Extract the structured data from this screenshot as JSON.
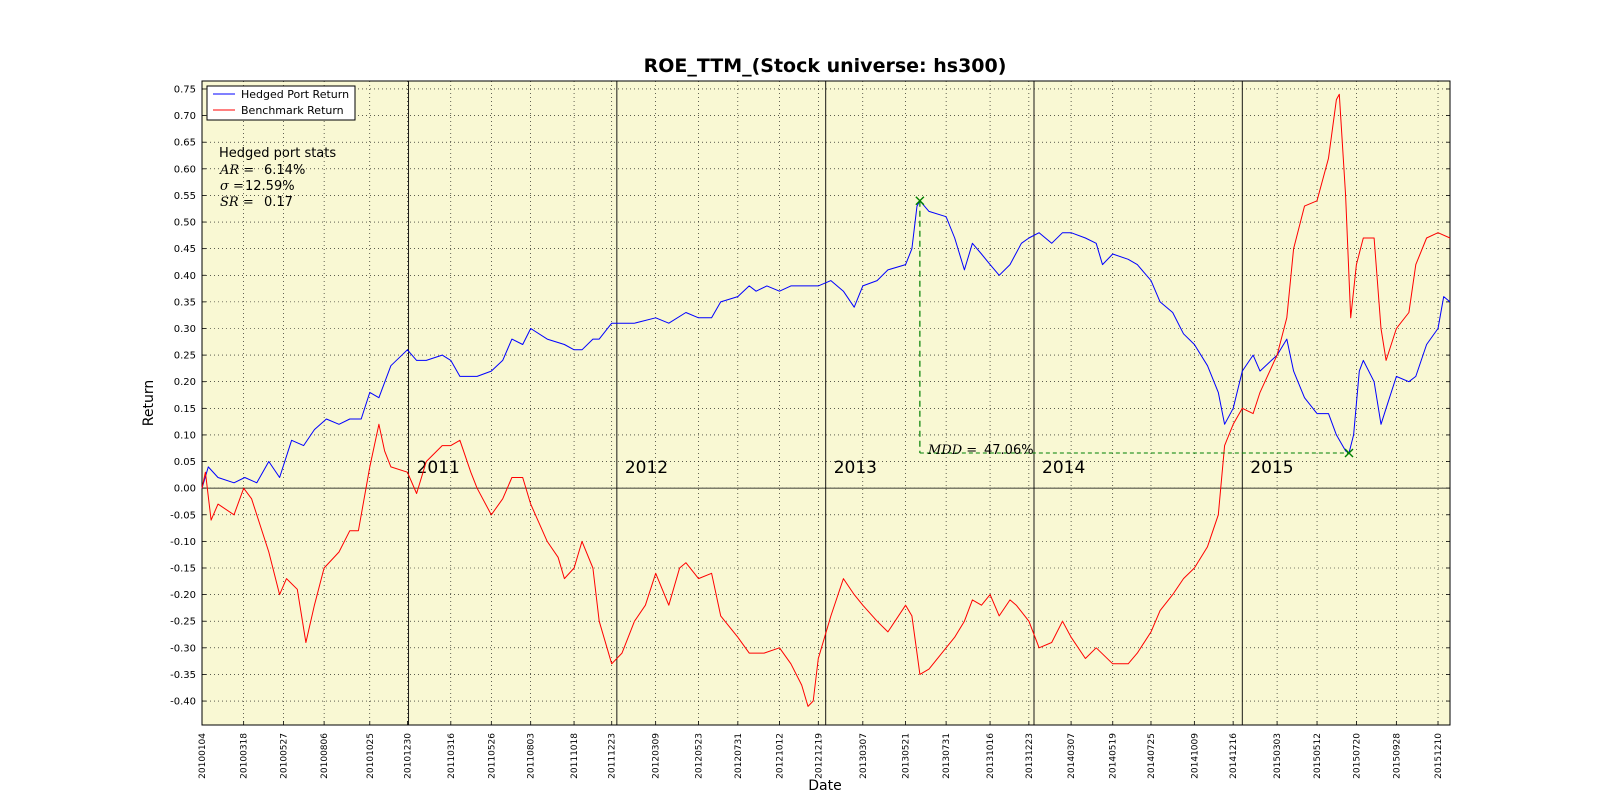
{
  "chart_data": {
    "type": "line",
    "title": "ROE_TTM_(Stock universe: hs300)",
    "xlabel": "Date",
    "ylabel": "Return",
    "ylim": [
      -0.445,
      0.765
    ],
    "yticks": [
      "0.75",
      "0.70",
      "0.65",
      "0.60",
      "0.55",
      "0.50",
      "0.45",
      "0.40",
      "0.35",
      "0.30",
      "0.25",
      "0.20",
      "0.15",
      "0.10",
      "0.05",
      "0.00",
      "-0.05",
      "-0.10",
      "-0.15",
      "-0.20",
      "-0.25",
      "-0.30",
      "-0.35",
      "-0.40"
    ],
    "x_tick_labels": [
      "20100104",
      "20100318",
      "20100527",
      "20100806",
      "20101025",
      "20101230",
      "20110316",
      "20110526",
      "20110803",
      "20111018",
      "20111223",
      "20120309",
      "20120523",
      "20120731",
      "20121012",
      "20121219",
      "20130307",
      "20130521",
      "20130731",
      "20131016",
      "20131223",
      "20140307",
      "20140519",
      "20140725",
      "20141009",
      "20141216",
      "20150303",
      "20150512",
      "20150720",
      "20150928",
      "20151210"
    ],
    "x_range": [
      "20100104",
      "20151231"
    ],
    "grid": true,
    "legend_position": "top-left",
    "year_labels": [
      "2011",
      "2012",
      "2013",
      "2014",
      "2015"
    ],
    "stats": {
      "heading": "Hedged port stats",
      "ar_label": "AR = ",
      "ar_value": "6.14%",
      "sigma_label": "σ = ",
      "sigma_value": "12.59%",
      "sr_label": "SR = ",
      "sr_value": "0.17"
    },
    "mdd": {
      "label": "MDD = ",
      "value": "47.06%",
      "peak": {
        "date": "20130615",
        "y": 0.54
      },
      "trough": {
        "date": "20150707",
        "y": 0.066
      }
    },
    "series": [
      {
        "name": "Hedged Port Return",
        "color": "#0000ff",
        "points": [
          [
            "20100104",
            0.0
          ],
          [
            "20100115",
            0.04
          ],
          [
            "20100201",
            0.02
          ],
          [
            "20100301",
            0.01
          ],
          [
            "20100320",
            0.02
          ],
          [
            "20100410",
            0.01
          ],
          [
            "20100501",
            0.05
          ],
          [
            "20100520",
            0.02
          ],
          [
            "20100610",
            0.09
          ],
          [
            "20100701",
            0.08
          ],
          [
            "20100720",
            0.11
          ],
          [
            "20100810",
            0.13
          ],
          [
            "20100901",
            0.12
          ],
          [
            "20100920",
            0.13
          ],
          [
            "20101010",
            0.13
          ],
          [
            "20101025",
            0.18
          ],
          [
            "20101110",
            0.17
          ],
          [
            "20101201",
            0.23
          ],
          [
            "20101230",
            0.26
          ],
          [
            "20110115",
            0.24
          ],
          [
            "20110201",
            0.24
          ],
          [
            "20110301",
            0.25
          ],
          [
            "20110316",
            0.24
          ],
          [
            "20110401",
            0.21
          ],
          [
            "20110501",
            0.21
          ],
          [
            "20110526",
            0.22
          ],
          [
            "20110615",
            0.24
          ],
          [
            "20110701",
            0.28
          ],
          [
            "20110720",
            0.27
          ],
          [
            "20110803",
            0.3
          ],
          [
            "20110901",
            0.28
          ],
          [
            "20111001",
            0.27
          ],
          [
            "20111018",
            0.26
          ],
          [
            "20111101",
            0.26
          ],
          [
            "20111120",
            0.28
          ],
          [
            "20111201",
            0.28
          ],
          [
            "20111223",
            0.31
          ],
          [
            "20120115",
            0.31
          ],
          [
            "20120201",
            0.31
          ],
          [
            "20120309",
            0.32
          ],
          [
            "20120401",
            0.31
          ],
          [
            "20120501",
            0.33
          ],
          [
            "20120523",
            0.32
          ],
          [
            "20120615",
            0.32
          ],
          [
            "20120701",
            0.35
          ],
          [
            "20120731",
            0.36
          ],
          [
            "20120820",
            0.38
          ],
          [
            "20120901",
            0.37
          ],
          [
            "20120920",
            0.38
          ],
          [
            "20121012",
            0.37
          ],
          [
            "20121101",
            0.38
          ],
          [
            "20121120",
            0.38
          ],
          [
            "20121219",
            0.38
          ],
          [
            "20130110",
            0.39
          ],
          [
            "20130201",
            0.37
          ],
          [
            "20130220",
            0.34
          ],
          [
            "20130307",
            0.38
          ],
          [
            "20130401",
            0.39
          ],
          [
            "20130420",
            0.41
          ],
          [
            "20130521",
            0.42
          ],
          [
            "20130601",
            0.45
          ],
          [
            "20130610",
            0.53
          ],
          [
            "20130615",
            0.54
          ],
          [
            "20130701",
            0.52
          ],
          [
            "20130731",
            0.51
          ],
          [
            "20130815",
            0.47
          ],
          [
            "20130901",
            0.41
          ],
          [
            "20130915",
            0.46
          ],
          [
            "20131001",
            0.44
          ],
          [
            "20131016",
            0.42
          ],
          [
            "20131101",
            0.4
          ],
          [
            "20131120",
            0.42
          ],
          [
            "20131210",
            0.46
          ],
          [
            "20131223",
            0.47
          ],
          [
            "20140110",
            0.48
          ],
          [
            "20140201",
            0.46
          ],
          [
            "20140220",
            0.48
          ],
          [
            "20140307",
            0.48
          ],
          [
            "20140401",
            0.47
          ],
          [
            "20140420",
            0.46
          ],
          [
            "20140501",
            0.42
          ],
          [
            "20140519",
            0.44
          ],
          [
            "20140615",
            0.43
          ],
          [
            "20140701",
            0.42
          ],
          [
            "20140725",
            0.39
          ],
          [
            "20140810",
            0.35
          ],
          [
            "20140901",
            0.33
          ],
          [
            "20140920",
            0.29
          ],
          [
            "20141009",
            0.27
          ],
          [
            "20141101",
            0.23
          ],
          [
            "20141120",
            0.18
          ],
          [
            "20141201",
            0.12
          ],
          [
            "20141216",
            0.15
          ],
          [
            "20150101",
            0.22
          ],
          [
            "20150120",
            0.25
          ],
          [
            "20150201",
            0.22
          ],
          [
            "20150303",
            0.25
          ],
          [
            "20150320",
            0.28
          ],
          [
            "20150401",
            0.22
          ],
          [
            "20150420",
            0.17
          ],
          [
            "20150512",
            0.14
          ],
          [
            "20150601",
            0.14
          ],
          [
            "20150615",
            0.1
          ],
          [
            "20150701",
            0.07
          ],
          [
            "20150707",
            0.066
          ],
          [
            "20150715",
            0.1
          ],
          [
            "20150725",
            0.22
          ],
          [
            "20150801",
            0.24
          ],
          [
            "20150820",
            0.2
          ],
          [
            "20150901",
            0.12
          ],
          [
            "20150910",
            0.15
          ],
          [
            "20150928",
            0.21
          ],
          [
            "20151020",
            0.2
          ],
          [
            "20151101",
            0.21
          ],
          [
            "20151120",
            0.27
          ],
          [
            "20151210",
            0.3
          ],
          [
            "20151220",
            0.36
          ],
          [
            "20151231",
            0.35
          ]
        ]
      },
      {
        "name": "Benchmark Return",
        "color": "#ff0000",
        "points": [
          [
            "20100104",
            0.0
          ],
          [
            "20100110",
            0.03
          ],
          [
            "20100120",
            -0.06
          ],
          [
            "20100201",
            -0.03
          ],
          [
            "20100301",
            -0.05
          ],
          [
            "20100318",
            0.0
          ],
          [
            "20100401",
            -0.02
          ],
          [
            "20100501",
            -0.12
          ],
          [
            "20100520",
            -0.2
          ],
          [
            "20100601",
            -0.17
          ],
          [
            "20100620",
            -0.19
          ],
          [
            "20100705",
            -0.29
          ],
          [
            "20100720",
            -0.22
          ],
          [
            "20100806",
            -0.15
          ],
          [
            "20100901",
            -0.12
          ],
          [
            "20100920",
            -0.08
          ],
          [
            "20101005",
            -0.08
          ],
          [
            "20101025",
            0.04
          ],
          [
            "20101110",
            0.12
          ],
          [
            "20101120",
            0.07
          ],
          [
            "20101201",
            0.04
          ],
          [
            "20101230",
            0.03
          ],
          [
            "20110115",
            -0.01
          ],
          [
            "20110201",
            0.05
          ],
          [
            "20110301",
            0.08
          ],
          [
            "20110316",
            0.08
          ],
          [
            "20110401",
            0.09
          ],
          [
            "20110420",
            0.03
          ],
          [
            "20110501",
            0.0
          ],
          [
            "20110526",
            -0.05
          ],
          [
            "20110615",
            -0.02
          ],
          [
            "20110701",
            0.02
          ],
          [
            "20110720",
            0.02
          ],
          [
            "20110803",
            -0.03
          ],
          [
            "20110901",
            -0.1
          ],
          [
            "20110920",
            -0.13
          ],
          [
            "20111001",
            -0.17
          ],
          [
            "20111018",
            -0.15
          ],
          [
            "20111101",
            -0.1
          ],
          [
            "20111120",
            -0.15
          ],
          [
            "20111201",
            -0.25
          ],
          [
            "20111223",
            -0.33
          ],
          [
            "20120110",
            -0.31
          ],
          [
            "20120201",
            -0.25
          ],
          [
            "20120220",
            -0.22
          ],
          [
            "20120309",
            -0.16
          ],
          [
            "20120401",
            -0.22
          ],
          [
            "20120420",
            -0.15
          ],
          [
            "20120501",
            -0.14
          ],
          [
            "20120523",
            -0.17
          ],
          [
            "20120615",
            -0.16
          ],
          [
            "20120701",
            -0.24
          ],
          [
            "20120731",
            -0.28
          ],
          [
            "20120820",
            -0.31
          ],
          [
            "20120915",
            -0.31
          ],
          [
            "20121012",
            -0.3
          ],
          [
            "20121101",
            -0.33
          ],
          [
            "20121120",
            -0.37
          ],
          [
            "20121201",
            -0.41
          ],
          [
            "20121210",
            -0.4
          ],
          [
            "20121219",
            -0.32
          ],
          [
            "20130110",
            -0.24
          ],
          [
            "20130201",
            -0.17
          ],
          [
            "20130220",
            -0.2
          ],
          [
            "20130307",
            -0.22
          ],
          [
            "20130401",
            -0.25
          ],
          [
            "20130420",
            -0.27
          ],
          [
            "20130521",
            -0.22
          ],
          [
            "20130601",
            -0.24
          ],
          [
            "20130615",
            -0.35
          ],
          [
            "20130701",
            -0.34
          ],
          [
            "20130731",
            -0.3
          ],
          [
            "20130815",
            -0.28
          ],
          [
            "20130901",
            -0.25
          ],
          [
            "20130915",
            -0.21
          ],
          [
            "20131001",
            -0.22
          ],
          [
            "20131016",
            -0.2
          ],
          [
            "20131101",
            -0.24
          ],
          [
            "20131120",
            -0.21
          ],
          [
            "20131201",
            -0.22
          ],
          [
            "20131223",
            -0.25
          ],
          [
            "20140110",
            -0.3
          ],
          [
            "20140201",
            -0.29
          ],
          [
            "20140220",
            -0.25
          ],
          [
            "20140307",
            -0.28
          ],
          [
            "20140401",
            -0.32
          ],
          [
            "20140420",
            -0.3
          ],
          [
            "20140519",
            -0.33
          ],
          [
            "20140615",
            -0.33
          ],
          [
            "20140701",
            -0.31
          ],
          [
            "20140725",
            -0.27
          ],
          [
            "20140810",
            -0.23
          ],
          [
            "20140901",
            -0.2
          ],
          [
            "20140920",
            -0.17
          ],
          [
            "20141009",
            -0.15
          ],
          [
            "20141101",
            -0.11
          ],
          [
            "20141120",
            -0.05
          ],
          [
            "20141201",
            0.08
          ],
          [
            "20141216",
            0.12
          ],
          [
            "20150101",
            0.15
          ],
          [
            "20150120",
            0.14
          ],
          [
            "20150201",
            0.18
          ],
          [
            "20150303",
            0.25
          ],
          [
            "20150320",
            0.32
          ],
          [
            "20150401",
            0.45
          ],
          [
            "20150420",
            0.53
          ],
          [
            "20150512",
            0.54
          ],
          [
            "20150601",
            0.62
          ],
          [
            "20150615",
            0.73
          ],
          [
            "20150620",
            0.74
          ],
          [
            "20150701",
            0.55
          ],
          [
            "20150710",
            0.32
          ],
          [
            "20150720",
            0.42
          ],
          [
            "20150801",
            0.47
          ],
          [
            "20150820",
            0.47
          ],
          [
            "20150901",
            0.3
          ],
          [
            "20150910",
            0.24
          ],
          [
            "20150928",
            0.3
          ],
          [
            "20151020",
            0.33
          ],
          [
            "20151101",
            0.42
          ],
          [
            "20151120",
            0.47
          ],
          [
            "20151210",
            0.48
          ],
          [
            "20151231",
            0.47
          ]
        ]
      }
    ]
  }
}
